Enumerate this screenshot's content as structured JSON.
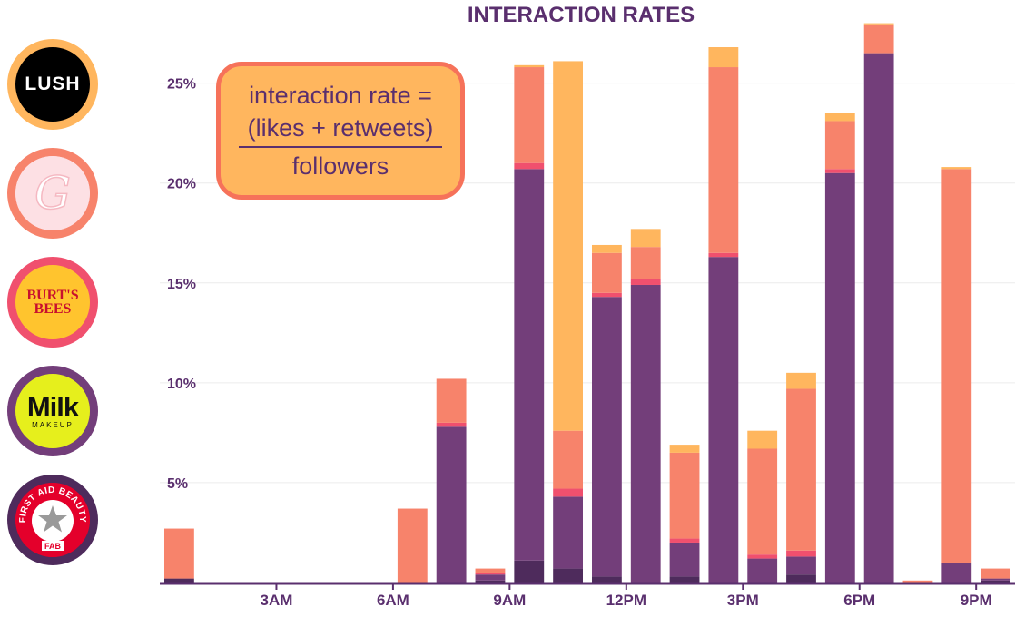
{
  "colors": {
    "lush": "#ffb65e",
    "glossier": "#f7836b",
    "burts": "#f0506e",
    "milk": "#733e7a",
    "fab": "#4e2b5c",
    "axis": "#5a2f6e",
    "grid": "#ececec",
    "text": "#5a2f6e"
  },
  "logos": [
    {
      "brand": "lush",
      "text": "LUSH",
      "icon": "lush-logo-icon"
    },
    {
      "brand": "glossier",
      "text": "G",
      "icon": "glossier-logo-icon"
    },
    {
      "brand": "burts",
      "text": "BURT'S BEES",
      "icon": "burts-bees-logo-icon"
    },
    {
      "brand": "milk",
      "text": "Milk",
      "subtext": "MAKEUP",
      "icon": "milk-makeup-logo-icon"
    },
    {
      "brand": "fab",
      "text": "FIRST AID BEAUTY",
      "subtext": "FAB",
      "icon": "first-aid-beauty-logo-icon"
    }
  ],
  "formula": {
    "lhs": "interaction rate =",
    "numerator": "(likes + retweets)",
    "denominator": "followers"
  },
  "chart_data": {
    "type": "bar",
    "stacked": true,
    "title": "INTERACTION RATES",
    "xlabel": "",
    "ylabel": "",
    "ylim": [
      0,
      27.8
    ],
    "yticks": [
      5,
      10,
      15,
      20,
      25
    ],
    "ytick_labels": [
      "5%",
      "10%",
      "15%",
      "20%",
      "25%"
    ],
    "grid": true,
    "categories": [
      1,
      2,
      3,
      4,
      5,
      6,
      7,
      8,
      9,
      10,
      11,
      12,
      13,
      14,
      15,
      16,
      17,
      18,
      19,
      20,
      21,
      22
    ],
    "xtick_values": [
      3,
      6,
      9,
      12,
      15,
      18,
      21
    ],
    "xtick_labels": [
      "3AM",
      "6AM",
      "9AM",
      "12PM",
      "3PM",
      "6PM",
      "9PM"
    ],
    "series": [
      {
        "key": "fab",
        "values": [
          0.2,
          0,
          0,
          0,
          0,
          0,
          0,
          0,
          0.1,
          1.1,
          0.7,
          0.3,
          0,
          0.3,
          0,
          0,
          0.4,
          0,
          0,
          0,
          0,
          0.1
        ]
      },
      {
        "key": "milk",
        "values": [
          0,
          0,
          0,
          0,
          0,
          0,
          0,
          7.8,
          0.3,
          19.6,
          3.6,
          14.0,
          14.9,
          1.7,
          16.3,
          1.2,
          0.9,
          20.5,
          26.5,
          0,
          1.0,
          0.1
        ]
      },
      {
        "key": "burts",
        "values": [
          0,
          0,
          0,
          0,
          0,
          0,
          0,
          0.2,
          0.1,
          0.3,
          0.4,
          0.2,
          0.3,
          0.2,
          0.2,
          0.2,
          0.3,
          0.2,
          0,
          0,
          0,
          0
        ]
      },
      {
        "key": "glossier",
        "values": [
          2.5,
          0,
          0,
          0,
          0,
          0,
          3.7,
          2.2,
          0.2,
          4.8,
          2.9,
          2.0,
          1.6,
          4.3,
          9.3,
          5.3,
          8.1,
          2.4,
          1.4,
          0.1,
          19.7,
          0.5
        ]
      },
      {
        "key": "lush",
        "values": [
          0,
          0,
          0,
          0,
          0,
          0,
          0,
          0,
          0,
          0.1,
          18.5,
          0.4,
          0.9,
          0.4,
          1.0,
          0.9,
          0.8,
          0.4,
          0.1,
          0,
          0.1,
          0
        ]
      }
    ]
  }
}
